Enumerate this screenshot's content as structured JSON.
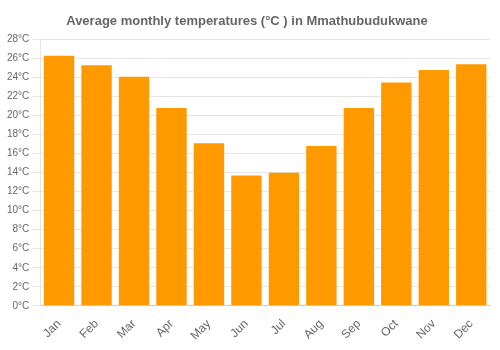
{
  "chart_data": {
    "type": "bar",
    "title": "Average monthly temperatures (°C ) in Mmathubudukwane",
    "categories": [
      "Jan",
      "Feb",
      "Mar",
      "Apr",
      "May",
      "Jun",
      "Jul",
      "Aug",
      "Sep",
      "Oct",
      "Nov",
      "Dec"
    ],
    "values": [
      26.3,
      25.3,
      24.1,
      20.8,
      17.1,
      13.7,
      14.0,
      16.8,
      20.8,
      23.5,
      24.8,
      25.4
    ],
    "color": "#FF9900",
    "ylim": [
      0,
      28
    ],
    "yticks": [
      {
        "value": 0,
        "label": "0°C"
      },
      {
        "value": 2,
        "label": "2°C"
      },
      {
        "value": 4,
        "label": "4°C"
      },
      {
        "value": 6,
        "label": "6°C"
      },
      {
        "value": 8,
        "label": "8°C"
      },
      {
        "value": 10,
        "label": "10°C"
      },
      {
        "value": 12,
        "label": "12°C"
      },
      {
        "value": 14,
        "label": "14°C"
      },
      {
        "value": 16,
        "label": "16°C"
      },
      {
        "value": 18,
        "label": "18°C"
      },
      {
        "value": 20,
        "label": "20°C"
      },
      {
        "value": 22,
        "label": "22°C"
      },
      {
        "value": 24,
        "label": "24°C"
      },
      {
        "value": 26,
        "label": "26°C"
      },
      {
        "value": 28,
        "label": "28°C"
      }
    ],
    "grid": true
  }
}
